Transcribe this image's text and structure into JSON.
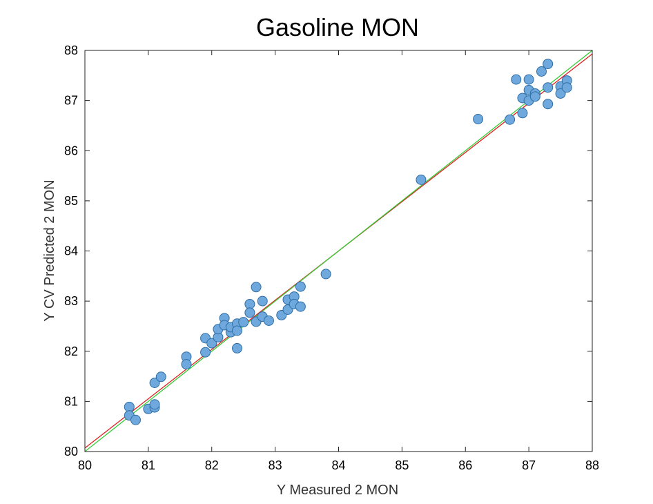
{
  "chart_data": {
    "type": "scatter",
    "title": "Gasoline MON",
    "xlabel": "Y Measured 2 MON",
    "ylabel": "Y CV Predicted 2 MON",
    "xlim": [
      80,
      88
    ],
    "ylim": [
      80,
      88
    ],
    "xticks": [
      "80",
      "81",
      "82",
      "83",
      "84",
      "85",
      "86",
      "87",
      "88"
    ],
    "yticks": [
      "80",
      "81",
      "82",
      "83",
      "84",
      "85",
      "86",
      "87",
      "88"
    ],
    "grid": false,
    "legend": "none",
    "colors": {
      "marker_fill": "#6fa8dc",
      "marker_edge": "#2e6ea6",
      "fit_line": "#e02020",
      "identity_line": "#33cc33"
    },
    "lines": [
      {
        "x": [
          80,
          88
        ],
        "y": [
          80.07,
          87.93
        ],
        "color": "#e02020"
      },
      {
        "x": [
          80,
          88
        ],
        "y": [
          80.0,
          88.0
        ],
        "color": "#33cc33"
      }
    ],
    "points": [
      {
        "x": 80.7,
        "y": 80.89
      },
      {
        "x": 80.7,
        "y": 80.72
      },
      {
        "x": 80.8,
        "y": 80.63
      },
      {
        "x": 81.0,
        "y": 80.85
      },
      {
        "x": 81.1,
        "y": 80.88
      },
      {
        "x": 81.1,
        "y": 80.94
      },
      {
        "x": 81.1,
        "y": 81.37
      },
      {
        "x": 81.2,
        "y": 81.49
      },
      {
        "x": 81.6,
        "y": 81.89
      },
      {
        "x": 81.6,
        "y": 81.74
      },
      {
        "x": 81.9,
        "y": 82.26
      },
      {
        "x": 81.9,
        "y": 81.98
      },
      {
        "x": 82.0,
        "y": 82.16
      },
      {
        "x": 82.1,
        "y": 82.28
      },
      {
        "x": 82.1,
        "y": 82.44
      },
      {
        "x": 82.2,
        "y": 82.66
      },
      {
        "x": 82.2,
        "y": 82.52
      },
      {
        "x": 82.3,
        "y": 82.38
      },
      {
        "x": 82.3,
        "y": 82.48
      },
      {
        "x": 82.4,
        "y": 82.55
      },
      {
        "x": 82.4,
        "y": 82.41
      },
      {
        "x": 82.4,
        "y": 82.06
      },
      {
        "x": 82.5,
        "y": 82.58
      },
      {
        "x": 82.6,
        "y": 82.94
      },
      {
        "x": 82.6,
        "y": 82.77
      },
      {
        "x": 82.7,
        "y": 83.28
      },
      {
        "x": 82.7,
        "y": 82.59
      },
      {
        "x": 82.8,
        "y": 83.0
      },
      {
        "x": 82.8,
        "y": 82.69
      },
      {
        "x": 82.9,
        "y": 82.61
      },
      {
        "x": 83.1,
        "y": 82.72
      },
      {
        "x": 83.2,
        "y": 83.03
      },
      {
        "x": 83.2,
        "y": 82.83
      },
      {
        "x": 83.3,
        "y": 83.09
      },
      {
        "x": 83.3,
        "y": 82.94
      },
      {
        "x": 83.4,
        "y": 83.29
      },
      {
        "x": 83.4,
        "y": 82.89
      },
      {
        "x": 83.8,
        "y": 83.54
      },
      {
        "x": 85.3,
        "y": 85.42
      },
      {
        "x": 86.2,
        "y": 86.63
      },
      {
        "x": 86.7,
        "y": 86.62
      },
      {
        "x": 86.8,
        "y": 87.42
      },
      {
        "x": 86.9,
        "y": 87.05
      },
      {
        "x": 86.9,
        "y": 86.75
      },
      {
        "x": 87.0,
        "y": 87.42
      },
      {
        "x": 87.0,
        "y": 87.21
      },
      {
        "x": 87.0,
        "y": 87.0
      },
      {
        "x": 87.1,
        "y": 87.14
      },
      {
        "x": 87.1,
        "y": 87.08
      },
      {
        "x": 87.2,
        "y": 87.58
      },
      {
        "x": 87.3,
        "y": 87.73
      },
      {
        "x": 87.3,
        "y": 87.26
      },
      {
        "x": 87.3,
        "y": 86.93
      },
      {
        "x": 87.5,
        "y": 87.28
      },
      {
        "x": 87.5,
        "y": 87.14
      },
      {
        "x": 87.6,
        "y": 87.4
      },
      {
        "x": 87.6,
        "y": 87.26
      }
    ]
  }
}
